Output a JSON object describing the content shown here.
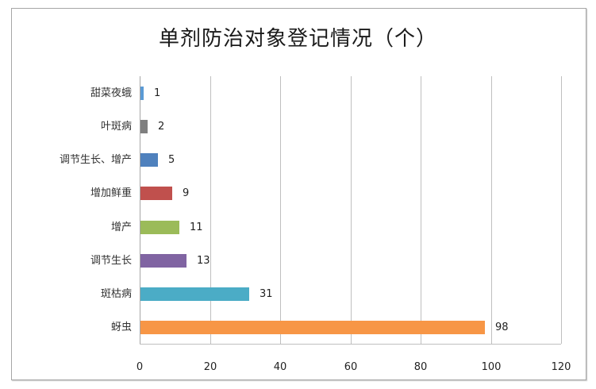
{
  "chart_data": {
    "type": "bar",
    "orientation": "horizontal",
    "title": "单剂防治对象登记情况（个）",
    "categories": [
      "甜菜夜蛾",
      "叶斑病",
      "调节生长、增产",
      "增加鲜重",
      "增产",
      "调节生长",
      "斑枯病",
      "蚜虫"
    ],
    "values": [
      1,
      2,
      5,
      9,
      11,
      13,
      31,
      98
    ],
    "colors": [
      "#5b9bd5",
      "#7f7f7f",
      "#4f81bd",
      "#c0504d",
      "#9bbb59",
      "#8064a2",
      "#4bacc6",
      "#f79646"
    ],
    "xlabel": "",
    "ylabel": "",
    "xlim": [
      0,
      120
    ],
    "xticks": [
      "0",
      "20",
      "40",
      "60",
      "80",
      "100",
      "120"
    ],
    "grid": "vertical",
    "legend": "none",
    "data_labels": [
      "1",
      "2",
      "5",
      "9",
      "11",
      "13",
      "31",
      "98"
    ]
  }
}
